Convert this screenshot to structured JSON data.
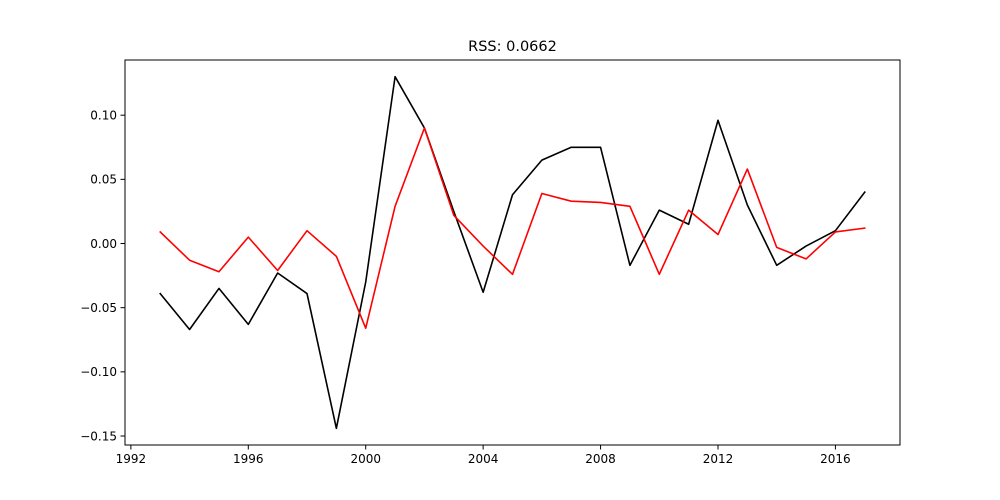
{
  "chart_data": {
    "type": "line",
    "title": "RSS: 0.0662",
    "xlabel": "",
    "ylabel": "",
    "xlim": [
      1991.8,
      2018.2
    ],
    "ylim": [
      -0.157,
      0.143
    ],
    "x_ticks": [
      1992,
      1996,
      2000,
      2004,
      2008,
      2012,
      2016
    ],
    "y_ticks": [
      -0.15,
      -0.1,
      -0.05,
      0.0,
      0.05,
      0.1
    ],
    "y_tick_labels": [
      "−0.15",
      "−0.10",
      "−0.05",
      "0.00",
      "0.05",
      "0.10"
    ],
    "grid": false,
    "x": [
      1993,
      1994,
      1995,
      1996,
      1997,
      1998,
      1999,
      2000,
      2001,
      2002,
      2003,
      2004,
      2005,
      2006,
      2007,
      2008,
      2009,
      2010,
      2011,
      2012,
      2013,
      2014,
      2015,
      2016,
      2017
    ],
    "series": [
      {
        "color": "#000000",
        "values": [
          -0.039,
          -0.067,
          -0.035,
          -0.063,
          -0.023,
          -0.039,
          -0.144,
          -0.03,
          0.13,
          0.09,
          0.025,
          -0.038,
          0.038,
          0.065,
          0.075,
          0.075,
          -0.017,
          0.026,
          0.015,
          0.096,
          0.03,
          -0.017,
          -0.002,
          0.01,
          0.04
        ]
      },
      {
        "color": "#ff0000",
        "values": [
          0.009,
          -0.013,
          -0.022,
          0.005,
          -0.021,
          0.01,
          -0.01,
          -0.066,
          0.029,
          0.09,
          0.022,
          -0.002,
          -0.024,
          0.039,
          0.033,
          0.032,
          0.029,
          -0.024,
          0.026,
          0.007,
          0.058,
          -0.003,
          -0.012,
          0.009,
          0.012
        ]
      }
    ]
  }
}
